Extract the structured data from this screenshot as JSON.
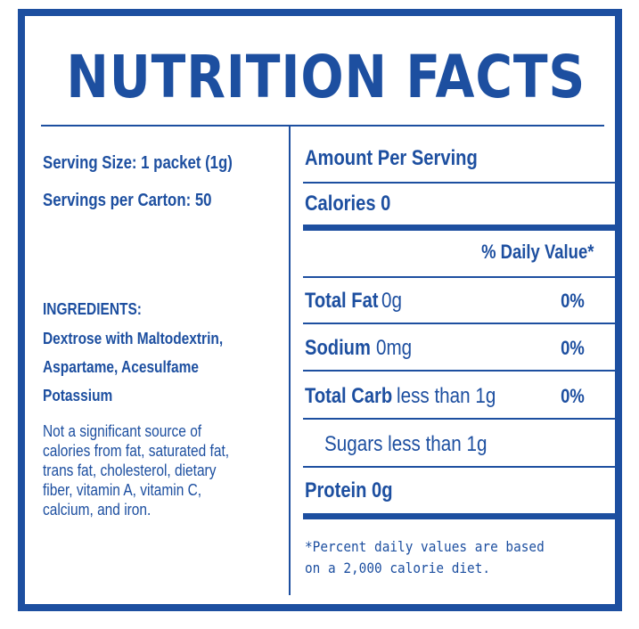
{
  "title": "NUTRITION FACTS",
  "serving": {
    "size": "Serving Size: 1 packet (1g)",
    "per_carton": "Servings per Carton: 50"
  },
  "ingredients": {
    "heading": "INGREDIENTS:",
    "lines": [
      "Dextrose with Maltodextrin,",
      "Aspartame, Acesulfame",
      "Potassium"
    ]
  },
  "note_lines": [
    "Not a significant source of",
    "calories from fat, saturated fat,",
    "trans fat, cholesterol, dietary",
    "fiber, vitamin A, vitamin C,",
    "calcium, and iron."
  ],
  "facts": {
    "amount_header": "Amount Per Serving",
    "calories_label": "Calories",
    "calories_value": "0",
    "daily_value_header": "% Daily Value*",
    "rows": [
      {
        "label": "Total Fat",
        "amount": "0g",
        "pct": "0%"
      },
      {
        "label": "Sodium",
        "amount": "0mg",
        "pct": "0%"
      },
      {
        "label": "Total Carb",
        "amount": "less than 1g",
        "pct": "0%"
      }
    ],
    "sugars": "Sugars less than 1g",
    "protein_label": "Protein",
    "protein_amount": "0g"
  },
  "footnote_lines": [
    "*Percent daily values are based",
    "on a 2,000 calorie diet."
  ],
  "colors": {
    "accent": "#1d4fa0",
    "background": "#ffffff"
  }
}
